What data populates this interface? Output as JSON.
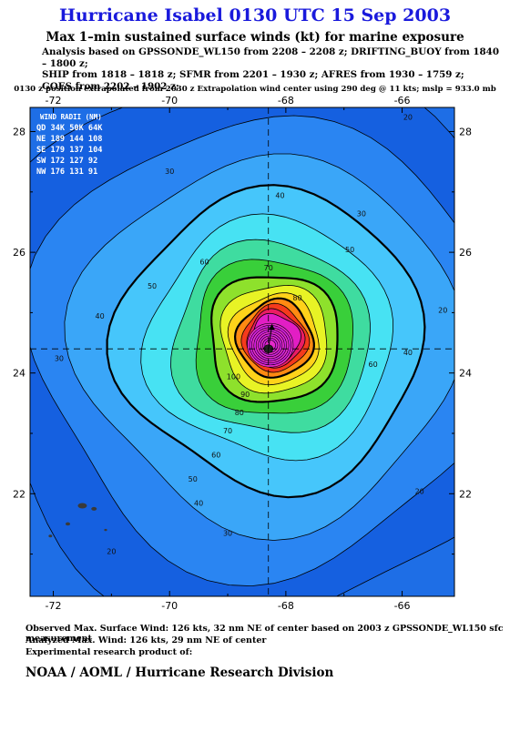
{
  "header": {
    "title": "Hurricane Isabel 0130 UTC 15 Sep 2003",
    "subtitle": "Max 1–min sustained surface winds (kt) for marine exposure",
    "analysis_lines": [
      "Analysis based on  GPSSONDE_WL150 from 2208 – 2208 z;  DRIFTING_BUOY from 1840 – 1800 z;",
      "SHIP from 1818 – 1818 z;  SFMR from 2201 – 1930 z;  AFRES from 1930 – 1759 z;",
      "GOES from 2202 – 1902 z;"
    ],
    "extrapolation": "0130 z position extrapolated from 2030 z Extrapolation wind center using 290 deg @ 11 kts; mslp = 933.0 mb"
  },
  "wind_radii": {
    "title": "WIND RADII (NM)",
    "header": "QD  34K  50K  64K",
    "rows": [
      "NE  189  144  108",
      "SE  179  137  104",
      "SW  172  127   92",
      "NW  176  131   91"
    ]
  },
  "footer": {
    "observed": "Observed Max. Surface Wind: 126 kts, 32 nm NE of center based on 2003 z GPSSONDE_WL150 sfc measurement",
    "analyzed": "Analyzed Max. Wind: 126 kts, 29 nm NE of center",
    "experimental": "Experimental research product of:",
    "org": "NOAA / AOML / Hurricane Research Division"
  },
  "colors": {
    "ocean_low": "#1e6ee6",
    "levels": [
      "#1560e0",
      "#2a85f2",
      "#3aa6f8",
      "#46c6fb",
      "#47e2f3",
      "#3fdca0",
      "#39cf3a",
      "#8ee12c",
      "#e8f325",
      "#ffd21a",
      "#ff8a12",
      "#f53a1c",
      "#ea1d64",
      "#e21ec4",
      "#d41ee0"
    ]
  },
  "chart_data": {
    "type": "contour",
    "title": "Hurricane Isabel 0130 UTC 15 Sep 2003",
    "xlabel": "",
    "ylabel": "",
    "xlim": [
      -72.4,
      -65.1
    ],
    "ylim": [
      20.3,
      28.4
    ],
    "x_ticks": [
      -72,
      -70,
      -68,
      -66
    ],
    "x_tick_labels": [
      "-72",
      "-70",
      "-68",
      "-66"
    ],
    "y_ticks": [
      22,
      24,
      26,
      28
    ],
    "y_tick_labels": [
      "22",
      "24",
      "26",
      "28"
    ],
    "center": {
      "lon": -68.3,
      "lat": 24.4
    },
    "contour_levels_kt": [
      10,
      20,
      30,
      40,
      50,
      60,
      70,
      80,
      90,
      100,
      110,
      120
    ],
    "contour_labels": [
      {
        "value": "20",
        "lon": -65.9,
        "lat": 28.2
      },
      {
        "value": "30",
        "lon": -70.0,
        "lat": 27.3
      },
      {
        "value": "40",
        "lon": -68.1,
        "lat": 26.9
      },
      {
        "value": "30",
        "lon": -66.7,
        "lat": 26.6
      },
      {
        "value": "50",
        "lon": -66.9,
        "lat": 26.0
      },
      {
        "value": "60",
        "lon": -69.4,
        "lat": 25.8
      },
      {
        "value": "70",
        "lon": -68.3,
        "lat": 25.7
      },
      {
        "value": "50",
        "lon": -70.3,
        "lat": 25.4
      },
      {
        "value": "80",
        "lon": -67.8,
        "lat": 25.2
      },
      {
        "value": "40",
        "lon": -71.2,
        "lat": 24.9
      },
      {
        "value": "20",
        "lon": -65.3,
        "lat": 25.0
      },
      {
        "value": "30",
        "lon": -71.9,
        "lat": 24.2
      },
      {
        "value": "60",
        "lon": -66.5,
        "lat": 24.1
      },
      {
        "value": "40",
        "lon": -65.9,
        "lat": 24.3
      },
      {
        "value": "100",
        "lon": -68.9,
        "lat": 23.9
      },
      {
        "value": "90",
        "lon": -68.7,
        "lat": 23.6
      },
      {
        "value": "80",
        "lon": -68.8,
        "lat": 23.3
      },
      {
        "value": "70",
        "lon": -69.0,
        "lat": 23.0
      },
      {
        "value": "60",
        "lon": -69.2,
        "lat": 22.6
      },
      {
        "value": "50",
        "lon": -69.6,
        "lat": 22.2
      },
      {
        "value": "40",
        "lon": -69.5,
        "lat": 21.8
      },
      {
        "value": "30",
        "lon": -69.0,
        "lat": 21.3
      },
      {
        "value": "20",
        "lon": -65.7,
        "lat": 22.0
      },
      {
        "value": "20",
        "lon": -71.0,
        "lat": 21.0
      }
    ],
    "motion_vector": {
      "direction_deg": 290,
      "speed_kt": 11
    },
    "grid": false
  }
}
